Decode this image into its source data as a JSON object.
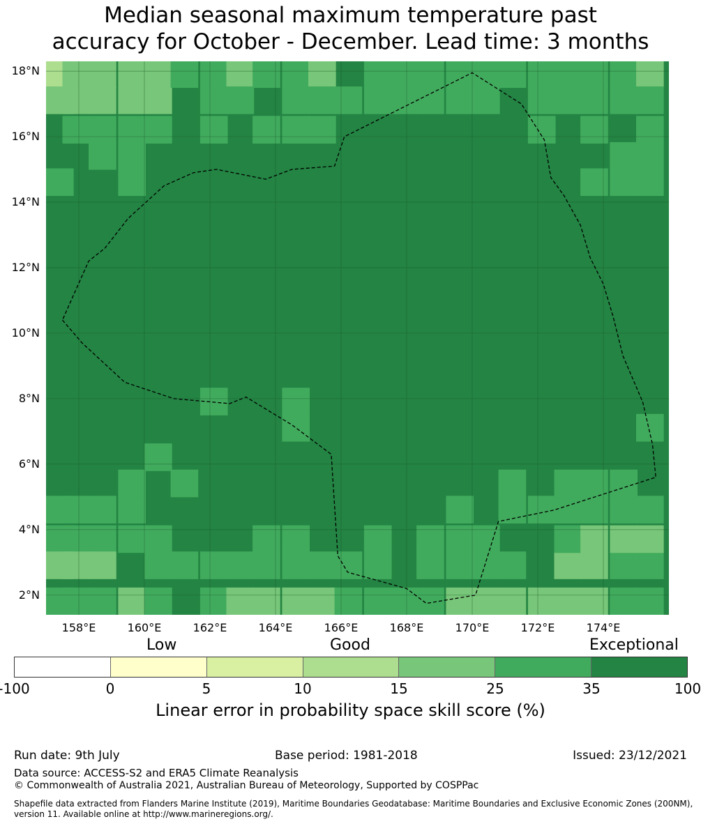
{
  "title_line1": "Median seasonal maximum temperature past",
  "title_line2": "accuracy for October - December. Lead time: 3 months",
  "map": {
    "lon_range": [
      157,
      176
    ],
    "lat_range": [
      1.4,
      18.3
    ],
    "grid_lons": [
      158,
      160,
      162,
      164,
      166,
      168,
      170,
      172,
      174
    ],
    "grid_lats": [
      2,
      4,
      6,
      8,
      10,
      12,
      14,
      16,
      18
    ],
    "x_labels": [
      "158°E",
      "160°E",
      "162°E",
      "164°E",
      "166°E",
      "168°E",
      "170°E",
      "172°E",
      "174°E"
    ],
    "y_labels": [
      "2°N",
      "4°N",
      "6°N",
      "8°N",
      "10°N",
      "12°N",
      "14°N",
      "16°N",
      "18°N"
    ],
    "cell_deg": 0.833,
    "palette": [
      "#ffffcc",
      "#d9f0a3",
      "#addd8e",
      "#78c679",
      "#41ab5d",
      "#238443"
    ],
    "base_class": 5,
    "lighter_cells": [
      [
        157.0,
        17.5,
        2
      ],
      [
        157.5,
        17.5,
        3
      ],
      [
        158.3,
        17.5,
        3
      ],
      [
        159.2,
        17.5,
        3
      ],
      [
        160.0,
        17.5,
        3
      ],
      [
        157.0,
        16.7,
        3
      ],
      [
        157.5,
        16.7,
        3
      ],
      [
        158.3,
        16.7,
        3
      ],
      [
        159.2,
        16.7,
        3
      ],
      [
        160.0,
        16.7,
        3
      ],
      [
        157.5,
        15.8,
        4
      ],
      [
        158.3,
        15.8,
        4
      ],
      [
        159.2,
        15.8,
        4
      ],
      [
        160.0,
        15.8,
        4
      ],
      [
        161.7,
        15.8,
        4
      ],
      [
        158.3,
        15.0,
        4
      ],
      [
        159.2,
        15.0,
        4
      ],
      [
        157.0,
        14.2,
        4
      ],
      [
        159.2,
        14.2,
        4
      ],
      [
        160.8,
        17.5,
        4
      ],
      [
        161.7,
        17.5,
        4
      ],
      [
        162.5,
        17.5,
        3
      ],
      [
        163.3,
        17.5,
        4
      ],
      [
        164.2,
        17.5,
        4
      ],
      [
        165.0,
        17.5,
        3
      ],
      [
        161.7,
        16.7,
        4
      ],
      [
        162.5,
        16.7,
        4
      ],
      [
        164.2,
        16.7,
        4
      ],
      [
        165.0,
        16.7,
        4
      ],
      [
        165.8,
        16.7,
        4
      ],
      [
        166.7,
        17.5,
        4
      ],
      [
        167.5,
        17.5,
        4
      ],
      [
        168.3,
        17.5,
        4
      ],
      [
        169.2,
        17.5,
        4
      ],
      [
        170.0,
        17.5,
        4
      ],
      [
        170.8,
        17.5,
        4
      ],
      [
        171.7,
        17.5,
        4
      ],
      [
        172.5,
        17.5,
        4
      ],
      [
        173.3,
        17.5,
        4
      ],
      [
        174.2,
        17.5,
        4
      ],
      [
        175.0,
        17.5,
        3
      ],
      [
        166.7,
        16.7,
        4
      ],
      [
        167.5,
        16.7,
        4
      ],
      [
        168.3,
        16.7,
        4
      ],
      [
        169.2,
        16.7,
        4
      ],
      [
        170.0,
        16.7,
        4
      ],
      [
        171.7,
        16.7,
        4
      ],
      [
        172.5,
        16.7,
        4
      ],
      [
        173.3,
        16.7,
        4
      ],
      [
        174.2,
        16.7,
        4
      ],
      [
        175.0,
        16.7,
        4
      ],
      [
        163.3,
        15.8,
        4
      ],
      [
        164.2,
        15.8,
        4
      ],
      [
        165.0,
        15.8,
        4
      ],
      [
        171.7,
        15.8,
        4
      ],
      [
        173.3,
        15.8,
        4
      ],
      [
        175.0,
        15.8,
        4
      ],
      [
        175.0,
        15.0,
        4
      ],
      [
        174.2,
        15.0,
        4
      ],
      [
        173.3,
        14.2,
        4
      ],
      [
        174.2,
        14.2,
        4
      ],
      [
        175.0,
        14.2,
        4
      ],
      [
        161.7,
        7.5,
        4
      ],
      [
        164.2,
        7.5,
        4
      ],
      [
        164.2,
        6.7,
        4
      ],
      [
        160.0,
        5.8,
        4
      ],
      [
        160.8,
        5.0,
        4
      ],
      [
        157.0,
        4.2,
        4
      ],
      [
        157.5,
        4.2,
        4
      ],
      [
        158.3,
        4.2,
        4
      ],
      [
        159.2,
        4.2,
        4
      ],
      [
        159.2,
        5.0,
        4
      ],
      [
        157.0,
        3.3,
        4
      ],
      [
        157.5,
        3.3,
        4
      ],
      [
        158.3,
        3.3,
        4
      ],
      [
        159.2,
        3.3,
        4
      ],
      [
        160.0,
        3.3,
        4
      ],
      [
        163.3,
        3.3,
        4
      ],
      [
        164.2,
        3.3,
        4
      ],
      [
        166.7,
        3.3,
        4
      ],
      [
        168.3,
        3.3,
        4
      ],
      [
        169.2,
        3.3,
        4
      ],
      [
        170.0,
        3.3,
        4
      ],
      [
        157.0,
        2.5,
        3
      ],
      [
        157.5,
        2.5,
        3
      ],
      [
        158.3,
        2.5,
        3
      ],
      [
        160.0,
        2.5,
        4
      ],
      [
        160.8,
        2.5,
        4
      ],
      [
        161.7,
        2.5,
        4
      ],
      [
        162.5,
        2.5,
        4
      ],
      [
        163.3,
        2.5,
        4
      ],
      [
        164.2,
        2.5,
        4
      ],
      [
        165.0,
        2.5,
        4
      ],
      [
        165.8,
        2.5,
        4
      ],
      [
        166.7,
        2.5,
        4
      ],
      [
        168.3,
        2.5,
        4
      ],
      [
        169.2,
        2.5,
        4
      ],
      [
        170.0,
        2.5,
        4
      ],
      [
        170.8,
        2.5,
        4
      ],
      [
        157.0,
        1.4,
        4
      ],
      [
        157.5,
        1.4,
        4
      ],
      [
        158.3,
        1.4,
        4
      ],
      [
        159.2,
        1.4,
        3
      ],
      [
        160.0,
        1.4,
        4
      ],
      [
        161.7,
        1.4,
        4
      ],
      [
        162.5,
        1.4,
        3
      ],
      [
        163.3,
        1.4,
        3
      ],
      [
        164.2,
        1.4,
        3
      ],
      [
        165.0,
        1.4,
        3
      ],
      [
        165.8,
        1.4,
        4
      ],
      [
        166.7,
        1.4,
        4
      ],
      [
        167.5,
        1.4,
        4
      ],
      [
        168.3,
        1.4,
        4
      ],
      [
        169.2,
        1.4,
        3
      ],
      [
        170.0,
        1.4,
        3
      ],
      [
        170.8,
        1.4,
        3
      ],
      [
        171.7,
        1.4,
        3
      ],
      [
        172.5,
        1.4,
        3
      ],
      [
        173.3,
        1.4,
        3
      ],
      [
        174.2,
        1.4,
        4
      ],
      [
        175.0,
        1.4,
        4
      ],
      [
        172.5,
        2.5,
        3
      ],
      [
        173.3,
        2.5,
        3
      ],
      [
        174.2,
        2.5,
        4
      ],
      [
        175.0,
        2.5,
        4
      ],
      [
        172.5,
        3.3,
        4
      ],
      [
        173.3,
        3.3,
        3
      ],
      [
        174.2,
        3.3,
        3
      ],
      [
        175.0,
        3.3,
        3
      ],
      [
        170.8,
        4.2,
        4
      ],
      [
        171.7,
        4.2,
        4
      ],
      [
        172.5,
        4.2,
        4
      ],
      [
        173.3,
        4.2,
        4
      ],
      [
        174.2,
        4.2,
        4
      ],
      [
        175.0,
        4.2,
        4
      ],
      [
        170.8,
        5.0,
        4
      ],
      [
        172.5,
        5.0,
        4
      ],
      [
        173.3,
        5.0,
        4
      ],
      [
        174.2,
        5.0,
        4
      ],
      [
        169.2,
        4.2,
        4
      ],
      [
        175.0,
        6.7,
        4
      ]
    ],
    "eez_boundary": [
      [
        157.5,
        10.4
      ],
      [
        158.1,
        9.7
      ],
      [
        159.4,
        8.5
      ],
      [
        160.9,
        8.0
      ],
      [
        162.6,
        7.85
      ],
      [
        163.1,
        8.05
      ],
      [
        164.5,
        7.2
      ],
      [
        165.7,
        6.3
      ],
      [
        165.9,
        3.2
      ],
      [
        166.2,
        2.7
      ],
      [
        168.0,
        2.2
      ],
      [
        168.6,
        1.75
      ],
      [
        170.1,
        2.0
      ],
      [
        170.8,
        4.25
      ],
      [
        172.5,
        4.6
      ],
      [
        175.6,
        5.6
      ],
      [
        175.5,
        6.6
      ],
      [
        175.2,
        7.9
      ],
      [
        174.9,
        8.6
      ],
      [
        174.6,
        9.3
      ],
      [
        174.3,
        10.5
      ],
      [
        174.0,
        11.5
      ],
      [
        173.6,
        12.3
      ],
      [
        173.3,
        13.3
      ],
      [
        172.8,
        14.2
      ],
      [
        172.4,
        14.75
      ],
      [
        172.2,
        15.9
      ],
      [
        171.5,
        17.0
      ],
      [
        170.0,
        17.95
      ],
      [
        166.1,
        16.0
      ],
      [
        165.8,
        15.1
      ],
      [
        164.5,
        15.0
      ],
      [
        163.7,
        14.7
      ],
      [
        162.2,
        15.0
      ],
      [
        161.5,
        14.9
      ],
      [
        160.6,
        14.5
      ],
      [
        159.5,
        13.5
      ],
      [
        158.8,
        12.6
      ],
      [
        158.3,
        12.2
      ],
      [
        157.5,
        10.4
      ]
    ]
  },
  "legend": {
    "categories": [
      "Low",
      "Good",
      "Exceptional"
    ],
    "colors": [
      "#ffffff",
      "#ffffcc",
      "#d9f0a3",
      "#addd8e",
      "#78c679",
      "#41ab5d",
      "#238443"
    ],
    "ticks": [
      "-100",
      "0",
      "5",
      "10",
      "15",
      "25",
      "35",
      "100"
    ],
    "label": "Linear error in probability space skill score (%)"
  },
  "footer": {
    "run_date": "Run date: 9th July",
    "base_period": "Base period: 1981-2018",
    "issued": "Issued: 23/12/2021",
    "data_source": "Data source: ACCESS-S2 and ERA5 Climate Reanalysis",
    "copyright": "© Commonwealth of Australia 2021, Australian Bureau of Meteorology, Supported by COSPPac",
    "shapefile_line1": "Shapefile data extracted from Flanders Marine Institute (2019), Maritime Boundaries Geodatabase: Maritime Boundaries and Exclusive Economic Zones (200NM),",
    "shapefile_line2": "version 11. Available online at http://www.marineregions.org/."
  }
}
